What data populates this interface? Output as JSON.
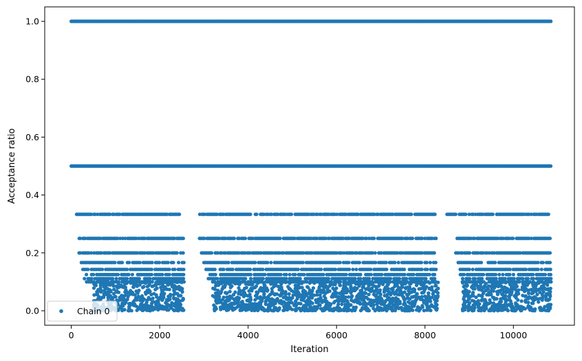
{
  "chart_data": {
    "type": "scatter",
    "title": "",
    "xlabel": "Iteration",
    "ylabel": "Acceptance ratio",
    "xlim": [
      -600,
      11380
    ],
    "ylim": [
      -0.05,
      1.05
    ],
    "xticks": [
      0,
      2000,
      4000,
      6000,
      8000,
      10000
    ],
    "yticks": [
      0.0,
      0.2,
      0.4,
      0.6,
      0.8,
      1.0
    ],
    "xtick_labels": [
      "0",
      "2000",
      "4000",
      "6000",
      "8000",
      "10000"
    ],
    "ytick_labels": [
      "0.0",
      "0.2",
      "0.4",
      "0.6",
      "0.8",
      "1.0"
    ],
    "grid": false,
    "legend_position": "lower-left",
    "color": "#1f77b4",
    "series": [
      {
        "name": "Chain 0",
        "x_range": [
          0,
          10850
        ],
        "discrete_levels": [
          1.0,
          0.5,
          0.3333,
          0.25,
          0.2,
          0.1667,
          0.1429,
          0.125,
          0.1111,
          0.1
        ],
        "level_coverage": [
          {
            "y": 1.0,
            "x": [
              [
                0,
                10850
              ]
            ]
          },
          {
            "y": 0.5,
            "x": [
              [
                0,
                10850
              ]
            ]
          },
          {
            "y": 0.3333,
            "x": [
              [
                120,
                2550
              ],
              [
                2850,
                8250
              ],
              [
                8500,
                10850
              ]
            ]
          },
          {
            "y": 0.25,
            "x": [
              [
                180,
                2550
              ],
              [
                2900,
                8250
              ],
              [
                8700,
                10850
              ]
            ]
          },
          {
            "y": 0.2,
            "x": [
              [
                150,
                2550
              ],
              [
                2950,
                8250
              ],
              [
                8700,
                10850
              ]
            ]
          },
          {
            "y": 0.1667,
            "x": [
              [
                230,
                2550
              ],
              [
                3000,
                8250
              ],
              [
                8750,
                10850
              ]
            ]
          },
          {
            "y": 0.1429,
            "x": [
              [
                260,
                2550
              ],
              [
                3050,
                8250
              ],
              [
                8800,
                10850
              ]
            ]
          },
          {
            "y": 0.125,
            "x": [
              [
                300,
                2550
              ],
              [
                3100,
                8250
              ],
              [
                8800,
                10850
              ]
            ]
          },
          {
            "y": 0.1111,
            "x": [
              [
                300,
                2550
              ],
              [
                3100,
                8250
              ],
              [
                8850,
                10850
              ]
            ]
          },
          {
            "y": 0.1,
            "x": [
              [
                350,
                2550
              ],
              [
                3200,
                8250
              ],
              [
                8850,
                10850
              ]
            ]
          }
        ],
        "low_value_clusters": [
          {
            "x": [
              500,
              2550
            ],
            "y": [
              0.0,
              0.1
            ]
          },
          {
            "x": [
              3200,
              5600
            ],
            "y": [
              0.0,
              0.1
            ]
          },
          {
            "x": [
              5600,
              8300
            ],
            "y": [
              0.0,
              0.1
            ]
          },
          {
            "x": [
              8850,
              10850
            ],
            "y": [
              0.0,
              0.1
            ]
          }
        ]
      }
    ]
  }
}
